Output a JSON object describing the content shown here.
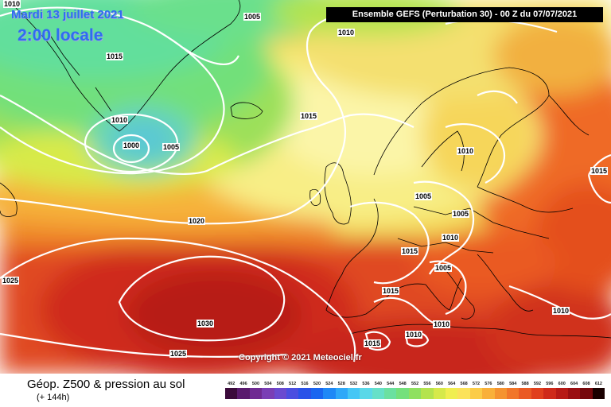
{
  "header": {
    "date": "Mardi 13 juillet 2021",
    "local_time": "2:00 locale",
    "run_info": "Ensemble GEFS  (Perturbation 30)  -  00 Z du 07/07/2021"
  },
  "map": {
    "copyright": "Copyright © 2021 Meteociel.fr",
    "isobars": [
      "1010",
      "1005",
      "1010",
      "1015",
      "1010",
      "1000",
      "1005",
      "1015",
      "1010",
      "1015",
      "1005",
      "1020",
      "1005",
      "1010",
      "1015",
      "1005",
      "1025",
      "1015",
      "1030",
      "1010",
      "1015",
      "1010",
      "1025",
      "1010"
    ]
  },
  "footer": {
    "title": "Géop. Z500 & pression au sol",
    "subtitle": "(+ 144h)"
  },
  "legend": {
    "labels": [
      "492",
      "496",
      "500",
      "504",
      "508",
      "512",
      "516",
      "520",
      "524",
      "528",
      "532",
      "536",
      "540",
      "544",
      "548",
      "552",
      "556",
      "560",
      "564",
      "568",
      "572",
      "576",
      "580",
      "584",
      "588",
      "592",
      "596",
      "600",
      "604",
      "608",
      "612"
    ],
    "colors": [
      "#3b0a3b",
      "#5a1a6e",
      "#6f2a92",
      "#7a3eb5",
      "#6a4ad0",
      "#4b4ee0",
      "#2a52e8",
      "#1a66f0",
      "#1f88f6",
      "#2fa8f8",
      "#45c6f5",
      "#5ad8e8",
      "#66e0c8",
      "#6be0a0",
      "#74e07c",
      "#8fe060",
      "#b4e34e",
      "#d6e94a",
      "#f0ee50",
      "#fbe25a",
      "#fbcc48",
      "#f9b03a",
      "#f59330",
      "#f1762a",
      "#ea5a24",
      "#e0401e",
      "#cf2a1a",
      "#b71a16",
      "#9a0f12",
      "#76080c",
      "#1a0000"
    ]
  }
}
